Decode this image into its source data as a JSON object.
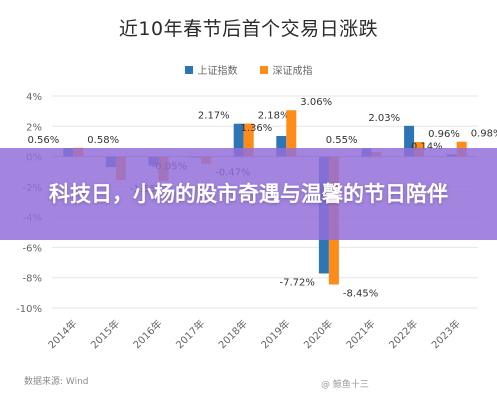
{
  "page": {
    "title": "近10年春节后首个交易日涨跌"
  },
  "overlay": {
    "text": "科技日，小杨的股市奇遇与温馨的节日陪伴"
  },
  "source": "数据来源: Wind",
  "watermark": "@ 鲸鱼十三",
  "colors": {
    "series1": "#2e75b6",
    "series2": "#ff8c1a",
    "overlay": "#9370db"
  },
  "chart_data": {
    "type": "bar",
    "title": "近10年春节后首个交易日涨跌",
    "categories": [
      "2014年",
      "2015年",
      "2016年",
      "2017年",
      "2018年",
      "2019年",
      "2020年",
      "2021年",
      "2022年",
      "2023年"
    ],
    "series": [
      {
        "name": "上证指数",
        "values": [
          0.56,
          -0.7,
          -0.6,
          -0.05,
          2.17,
          1.36,
          -7.72,
          0.55,
          2.03,
          0.14
        ],
        "labels": [
          "0.56%",
          "",
          "",
          "-0.05%",
          "2.17%",
          "1.36%",
          "-7.72%",
          "0.55%",
          "2.03%",
          "0.14%"
        ]
      },
      {
        "name": "深证成指",
        "values": [
          0.58,
          -1.55,
          -1.6,
          -0.47,
          2.18,
          3.06,
          -8.45,
          0.3,
          0.96,
          0.98
        ],
        "labels": [
          "0.58%",
          "-1.55%",
          "",
          "-0.47%",
          "2.18%",
          "3.06%",
          "-8.45%",
          "",
          "0.96%",
          "0.98%"
        ]
      }
    ],
    "y_ticks": [
      "4%",
      "2%",
      "0%",
      "-2%",
      "-4%",
      "-6%",
      "-8%",
      "-10%"
    ],
    "ylim": [
      -10,
      4
    ],
    "grid": true,
    "legend_position": "top"
  }
}
